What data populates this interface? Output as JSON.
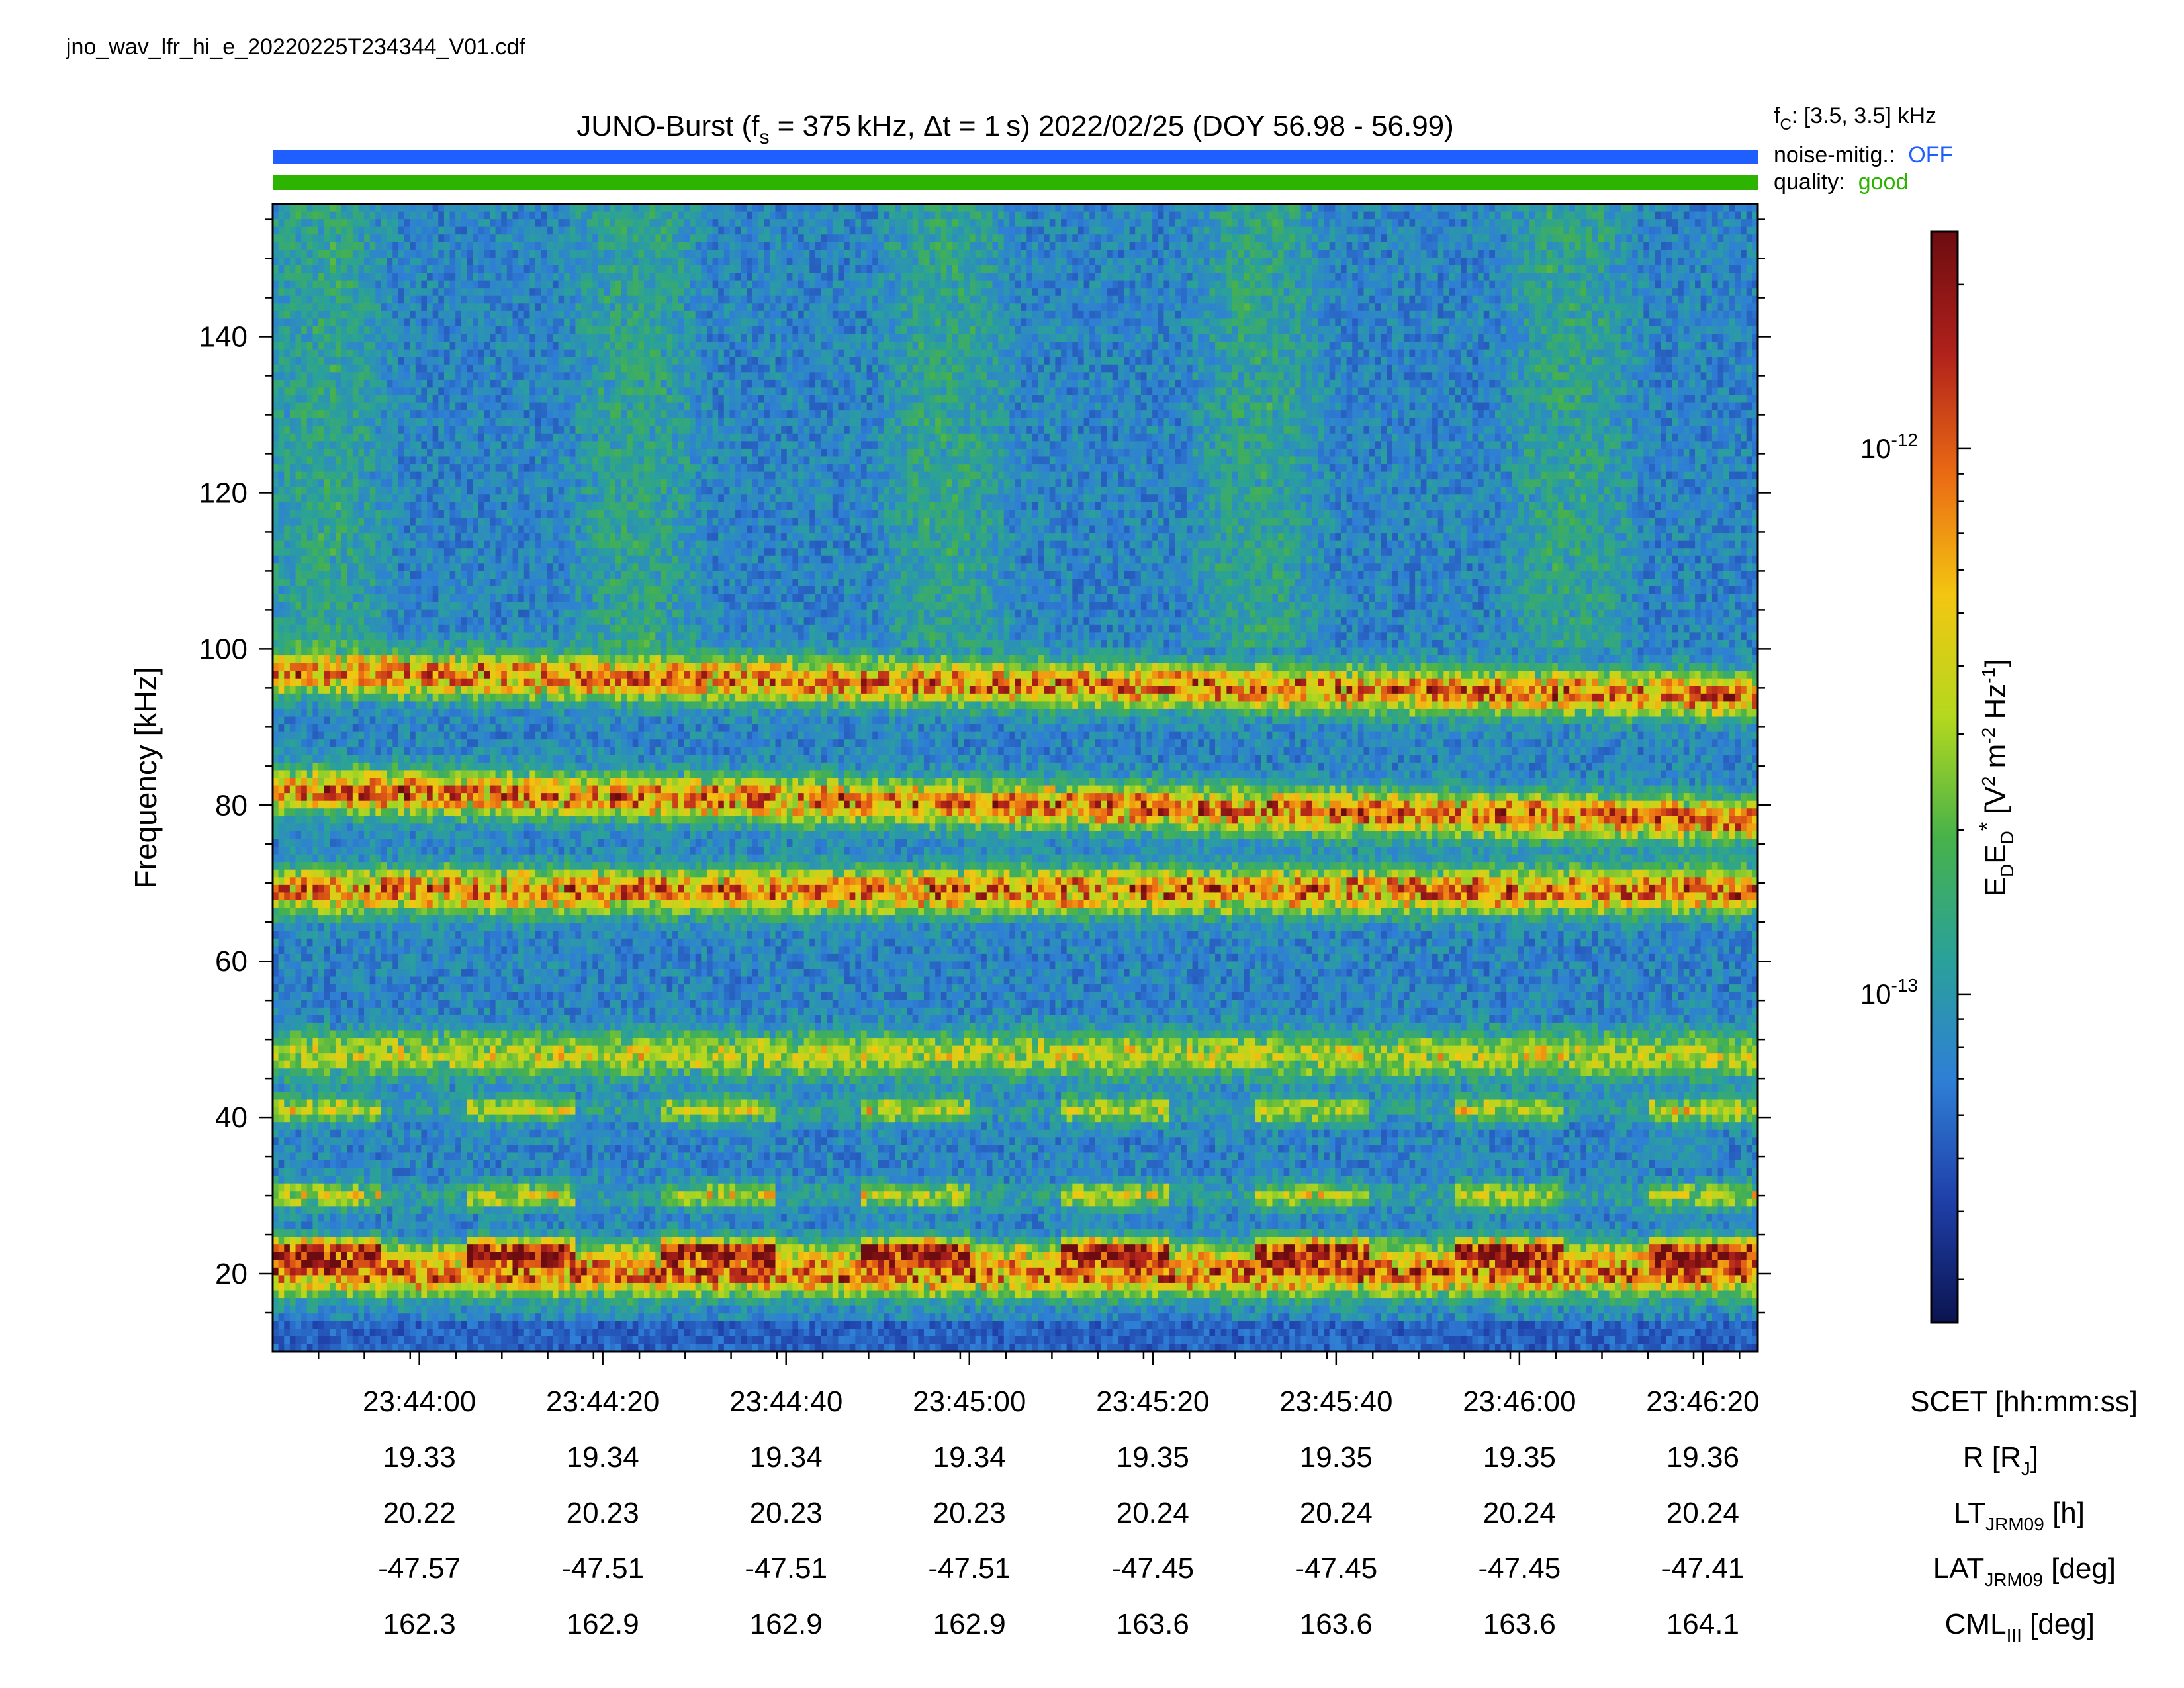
{
  "file_name": "jno_wav_lfr_hi_e_20220225T234344_V01.cdf",
  "header": {
    "title_prefix": "JUNO-Burst (f",
    "title_sub": "s",
    "title_suffix": " = 375 kHz, Δt = 1 s)  2022/02/25 (DOY 56.98 - 56.99)",
    "fc_label": "f",
    "fc_sub": "C",
    "fc_value": ": [3.5, 3.5] kHz",
    "noise_label": "noise-mitig.:",
    "noise_value": "OFF",
    "noise_color": "#1f5fff",
    "quality_label": "quality:",
    "quality_value": "good",
    "quality_color": "#2db400"
  },
  "chart_data": {
    "type": "heatmap",
    "ylabel": "Frequency [kHz]",
    "ylim": [
      10,
      157
    ],
    "y_ticks": [
      20,
      40,
      60,
      80,
      100,
      120,
      140
    ],
    "x_ticks": [
      "23:44:00",
      "23:44:20",
      "23:44:40",
      "23:45:00",
      "23:45:20",
      "23:45:40",
      "23:46:00",
      "23:46:20"
    ],
    "x_range_seconds_of_day": [
      85424,
      85586
    ],
    "x_tick_seconds_of_day": [
      85440,
      85460,
      85480,
      85500,
      85520,
      85540,
      85560,
      85580
    ],
    "colorbar": {
      "label": "E_D E_D* [V^2 m^-2 Hz^-1]",
      "scale": "log",
      "range": [
        2.5e-14,
        2.5e-12
      ],
      "ticks": [
        {
          "value": 1e-12,
          "base": "10",
          "exp": "-12"
        },
        {
          "value": 1e-13,
          "base": "10",
          "exp": "-13"
        }
      ]
    },
    "spectral_bands": [
      {
        "freq_start_khz": 20,
        "freq_end_khz": 20,
        "intensity": "high"
      },
      {
        "freq_start_khz": 23,
        "freq_end_khz": 23,
        "intensity": "high, intermittent"
      },
      {
        "freq_start_khz": 30,
        "freq_end_khz": 30,
        "intensity": "medium, intermittent"
      },
      {
        "freq_start_khz": 41,
        "freq_end_khz": 41,
        "intensity": "medium, intermittent"
      },
      {
        "freq_start_khz": 48,
        "freq_end_khz": 48,
        "intensity": "medium"
      },
      {
        "freq_start_khz": 69,
        "freq_end_khz": 69,
        "intensity": "high"
      },
      {
        "freq_start_khz": 82,
        "freq_end_khz": 78,
        "intensity": "high"
      },
      {
        "freq_start_khz": 97,
        "freq_end_khz": 94,
        "intensity": "high"
      }
    ],
    "ephemeris_rows": [
      {
        "label": "SCET [hh:mm:ss]",
        "values": [
          "23:44:00",
          "23:44:20",
          "23:44:40",
          "23:45:00",
          "23:45:20",
          "23:45:40",
          "23:46:00",
          "23:46:20"
        ]
      },
      {
        "label": "R [R_J]",
        "values": [
          "19.33",
          "19.34",
          "19.34",
          "19.34",
          "19.35",
          "19.35",
          "19.35",
          "19.36"
        ]
      },
      {
        "label": "LT_JRM09 [h]",
        "values": [
          "20.22",
          "20.23",
          "20.23",
          "20.23",
          "20.24",
          "20.24",
          "20.24",
          "20.24"
        ]
      },
      {
        "label": "LAT_JRM09 [deg]",
        "values": [
          "-47.57",
          "-47.51",
          "-47.51",
          "-47.51",
          "-47.45",
          "-47.45",
          "-47.45",
          "-47.41"
        ]
      },
      {
        "label": "CML_III [deg]",
        "values": [
          "162.3",
          "162.9",
          "162.9",
          "162.9",
          "163.6",
          "163.6",
          "163.6",
          "164.1"
        ]
      }
    ]
  },
  "colors": {
    "status_bar_noise": "#1f5fff",
    "status_bar_quality": "#2db400",
    "colormap": [
      "#0b1450",
      "#1f3fa8",
      "#2f7fd6",
      "#2aa19a",
      "#47b24a",
      "#b4d81e",
      "#f3c611",
      "#ea6a14",
      "#b0211b",
      "#6c0c10"
    ]
  }
}
